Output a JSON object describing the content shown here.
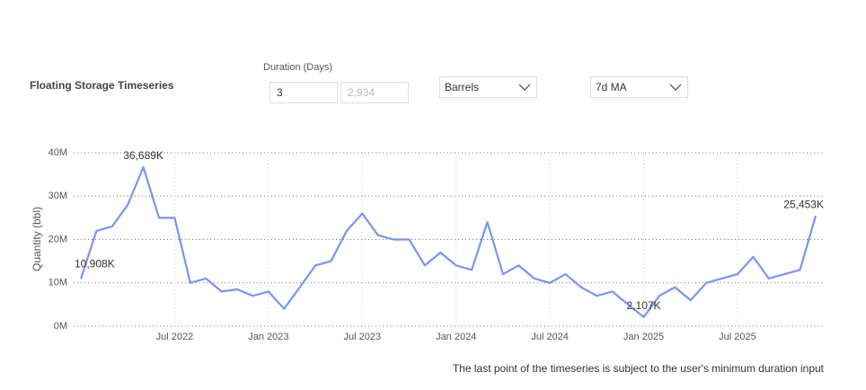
{
  "header": {
    "title": "Floating Storage Timeseries",
    "duration_label": "Duration (Days)",
    "duration_min": "3",
    "duration_max": "2,934",
    "unit": "Barrels",
    "smoothing": "7d MA"
  },
  "footer": {
    "note": "The last point of the timeseries is subject to the user's minimum duration input"
  },
  "chart_data": {
    "type": "line",
    "y_label": "Quantity (bbl)",
    "color": "#7b93f0",
    "categories": [
      "Jan 2022",
      "Feb 2022",
      "Mar 2022",
      "Apr 2022",
      "May 2022",
      "Jun 2022",
      "Jul 2022",
      "Aug 2022",
      "Sep 2022",
      "Oct 2022",
      "Nov 2022",
      "Dec 2022",
      "Jan 2023",
      "Feb 2023",
      "Mar 2023",
      "Apr 2023",
      "May 2023",
      "Jun 2023",
      "Jul 2023",
      "Aug 2023",
      "Sep 2023",
      "Oct 2023",
      "Nov 2023",
      "Dec 2023",
      "Jan 2024",
      "Feb 2024",
      "Mar 2024",
      "Apr 2024",
      "May 2024",
      "Jun 2024",
      "Jul 2024",
      "Aug 2024",
      "Sep 2024",
      "Oct 2024",
      "Nov 2024",
      "Dec 2024",
      "Jan 2025",
      "Feb 2025",
      "Mar 2025",
      "Apr 2025",
      "May 2025",
      "Jun 2025",
      "Jul 2025",
      "Aug 2025",
      "Sep 2025",
      "Oct 2025",
      "Nov 2025",
      "Dec 2025"
    ],
    "values": [
      10908000,
      22000000,
      23000000,
      28000000,
      36689000,
      25000000,
      25000000,
      10000000,
      11000000,
      8000000,
      8500000,
      7000000,
      8000000,
      4000000,
      9000000,
      14000000,
      15000000,
      22000000,
      26000000,
      21000000,
      20000000,
      20000000,
      14000000,
      17000000,
      14000000,
      13000000,
      24000000,
      12000000,
      14000000,
      11000000,
      10000000,
      12000000,
      9000000,
      7000000,
      8000000,
      5000000,
      2107000,
      7000000,
      9000000,
      6000000,
      10000000,
      11000000,
      12000000,
      16000000,
      11000000,
      12000000,
      13000000,
      25453000
    ],
    "value_labels": [
      "10,908K",
      null,
      null,
      null,
      "36,689K",
      null,
      null,
      null,
      null,
      null,
      null,
      null,
      null,
      null,
      null,
      null,
      null,
      null,
      null,
      null,
      null,
      null,
      null,
      null,
      null,
      null,
      null,
      null,
      null,
      null,
      null,
      null,
      null,
      null,
      null,
      null,
      "2,107K",
      null,
      null,
      null,
      null,
      null,
      null,
      null,
      null,
      null,
      null,
      "25,453K"
    ],
    "xticks": [
      "Jul 2022",
      "Jan 2023",
      "Jul 2023",
      "Jan 2024",
      "Jul 2024",
      "Jan 2025",
      "Jul 2025"
    ],
    "ylim": [
      0,
      40000000
    ],
    "yticks": [
      {
        "value": 0,
        "label": "0M"
      },
      {
        "value": 10000000,
        "label": "10M"
      },
      {
        "value": 20000000,
        "label": "20M"
      },
      {
        "value": 30000000,
        "label": "30M"
      },
      {
        "value": 40000000,
        "label": "40M"
      }
    ],
    "grid": true
  }
}
